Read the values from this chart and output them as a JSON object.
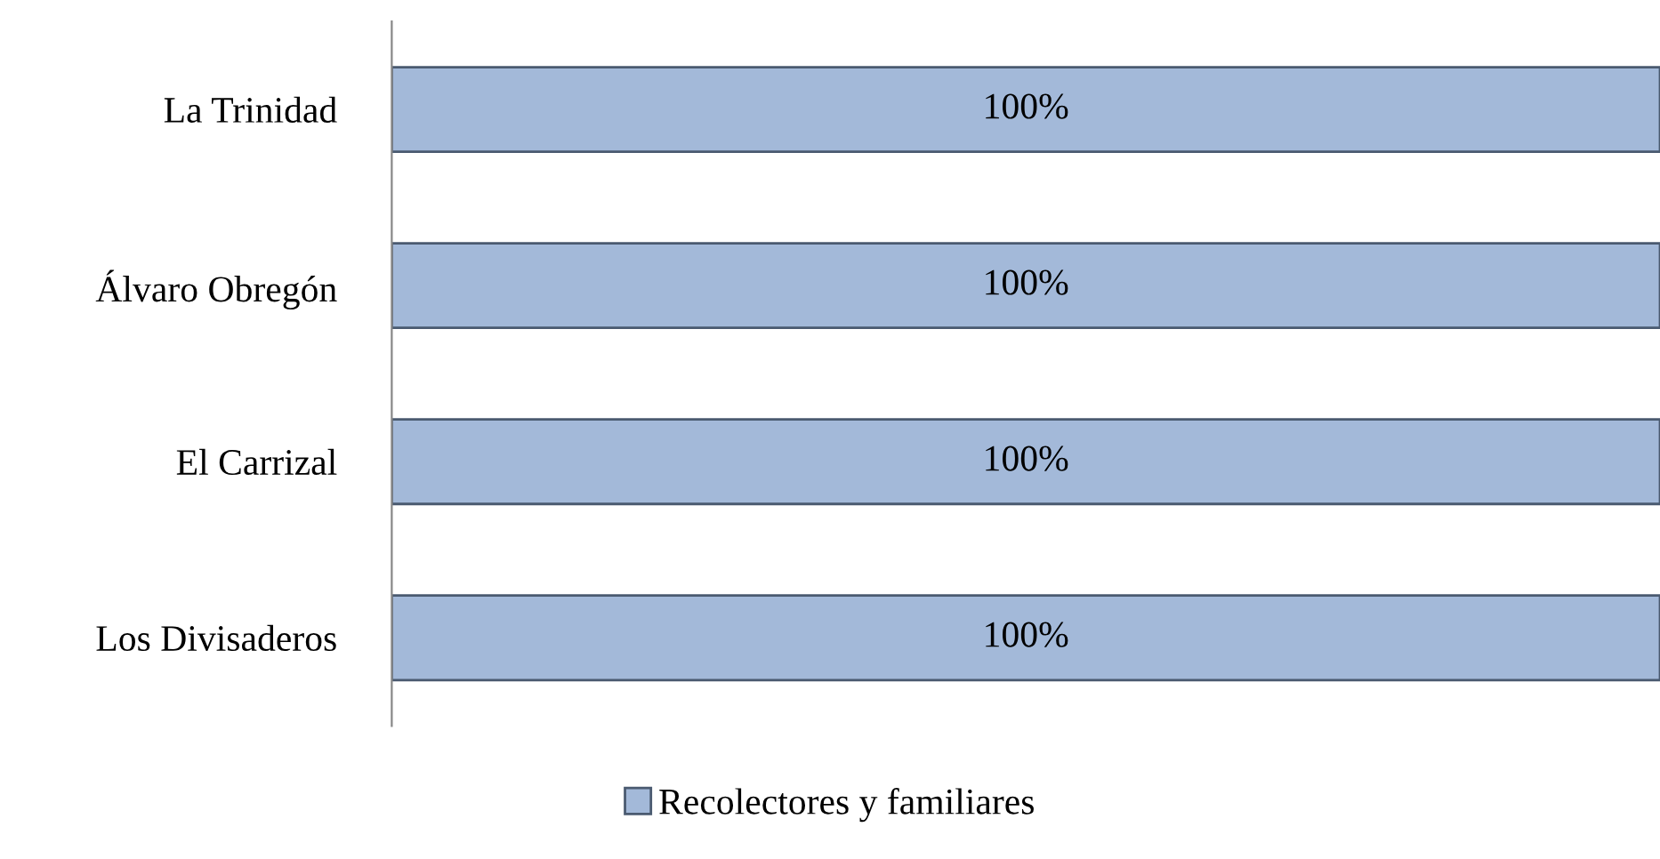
{
  "chart_data": {
    "type": "bar",
    "orientation": "horizontal",
    "categories": [
      "La Trinidad",
      "Álvaro Obregón",
      "El Carrizal",
      "Los Divisaderos"
    ],
    "series": [
      {
        "name": "Recolectores y familiares",
        "color": "#a3b9d9",
        "values": [
          100,
          100,
          100,
          100
        ],
        "value_labels": [
          "100%",
          "100%",
          "100%",
          "100%"
        ]
      }
    ],
    "tick_labels": "y",
    "grid": false,
    "legend": "bottom"
  }
}
